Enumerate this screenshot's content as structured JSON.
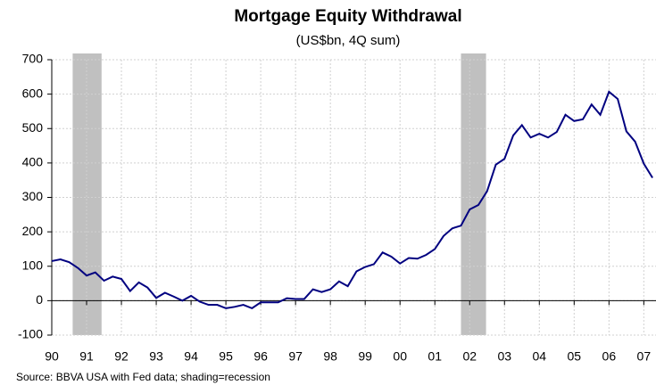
{
  "chart_data": {
    "type": "line",
    "title": "Mortgage Equity Withdrawal",
    "subtitle": "(US$bn, 4Q sum)",
    "source": "Source: BBVA USA with Fed data; shading=recession",
    "x": [
      1990,
      1990.25,
      1990.5,
      1990.75,
      1991,
      1991.25,
      1991.5,
      1991.75,
      1992,
      1992.25,
      1992.5,
      1992.75,
      1993,
      1993.25,
      1993.5,
      1993.75,
      1994,
      1994.25,
      1994.5,
      1994.75,
      1995,
      1995.25,
      1995.5,
      1995.75,
      1996,
      1996.25,
      1996.5,
      1996.75,
      1997,
      1997.25,
      1997.5,
      1997.75,
      1998,
      1998.25,
      1998.5,
      1998.75,
      1999,
      1999.25,
      1999.5,
      1999.75,
      2000,
      2000.25,
      2000.5,
      2000.75,
      2001,
      2001.25,
      2001.5,
      2001.75,
      2002,
      2002.25,
      2002.5,
      2002.75,
      2003,
      2003.25,
      2003.5,
      2003.75,
      2004,
      2004.25,
      2004.5,
      2004.75,
      2005,
      2005.25,
      2005.5,
      2005.75,
      2006,
      2006.25,
      2006.5,
      2006.75,
      2007,
      2007.25
    ],
    "series": [
      {
        "color": "#000080",
        "values": [
          115,
          120,
          112,
          95,
          73,
          82,
          58,
          70,
          63,
          28,
          53,
          38,
          8,
          23,
          12,
          0,
          14,
          -3,
          -12,
          -12,
          -22,
          -18,
          -12,
          -22,
          -5,
          -5,
          -5,
          7,
          5,
          5,
          33,
          25,
          33,
          56,
          42,
          85,
          98,
          106,
          140,
          128,
          108,
          124,
          122,
          133,
          150,
          188,
          210,
          218,
          265,
          278,
          318,
          395,
          412,
          480,
          510,
          474,
          485,
          474,
          490,
          540,
          522,
          527,
          570,
          540,
          607,
          586,
          492,
          462,
          398,
          357
        ]
      }
    ],
    "shading": [
      {
        "start": 1990.6,
        "end": 1991.43
      },
      {
        "start": 2001.75,
        "end": 2002.47
      }
    ],
    "shading_color": "#c0c0c0",
    "xlim": [
      1990,
      2007.35
    ],
    "xticks": [
      {
        "value": 1990,
        "label": "90"
      },
      {
        "value": 1991,
        "label": "91"
      },
      {
        "value": 1992,
        "label": "92"
      },
      {
        "value": 1993,
        "label": "93"
      },
      {
        "value": 1994,
        "label": "94"
      },
      {
        "value": 1995,
        "label": "95"
      },
      {
        "value": 1996,
        "label": "96"
      },
      {
        "value": 1997,
        "label": "97"
      },
      {
        "value": 1998,
        "label": "98"
      },
      {
        "value": 1999,
        "label": "99"
      },
      {
        "value": 2000,
        "label": "00"
      },
      {
        "value": 2001,
        "label": "01"
      },
      {
        "value": 2002,
        "label": "02"
      },
      {
        "value": 2003,
        "label": "03"
      },
      {
        "value": 2004,
        "label": "04"
      },
      {
        "value": 2005,
        "label": "05"
      },
      {
        "value": 2006,
        "label": "06"
      },
      {
        "value": 2007,
        "label": "07"
      }
    ],
    "ylim": [
      -100,
      700
    ],
    "yticks": [
      -100,
      0,
      100,
      200,
      300,
      400,
      500,
      600,
      700
    ],
    "grid": true
  }
}
